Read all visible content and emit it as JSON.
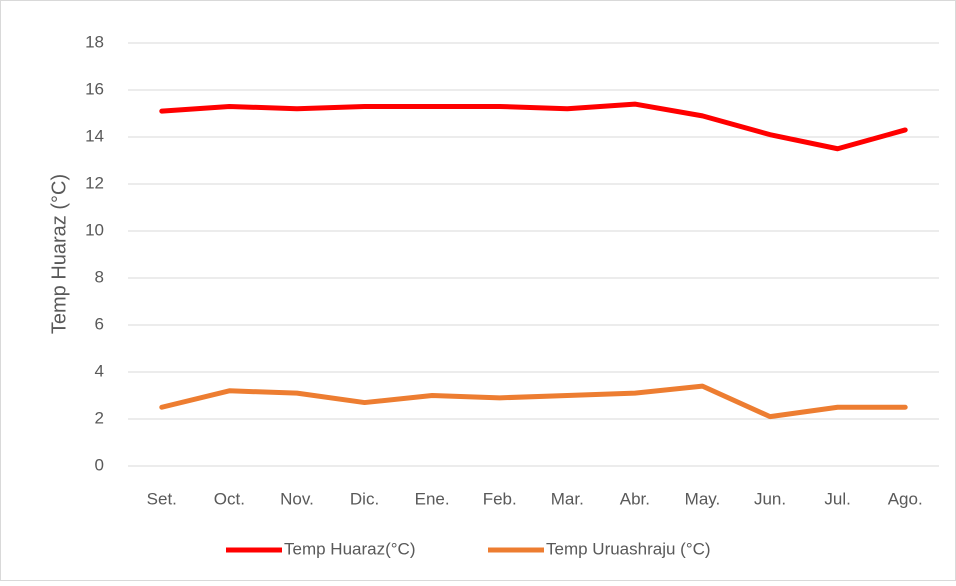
{
  "chart_data": {
    "type": "line",
    "y_label": "Temp Huaraz (°C)",
    "categories": [
      "Set.",
      "Oct.",
      "Nov.",
      "Dic.",
      "Ene.",
      "Feb.",
      "Mar.",
      "Abr.",
      "May.",
      "Jun.",
      "Jul.",
      "Ago."
    ],
    "series": [
      {
        "name": "Temp Huaraz(°C)",
        "color": "#ff0000",
        "values": [
          15.1,
          15.3,
          15.2,
          15.3,
          15.3,
          15.3,
          15.2,
          15.4,
          14.9,
          14.1,
          13.5,
          14.3
        ]
      },
      {
        "name": "Temp Uruashraju (°C)",
        "color": "#ed7d31",
        "values": [
          2.5,
          3.2,
          3.1,
          2.7,
          3.0,
          2.9,
          3.0,
          3.1,
          3.4,
          2.1,
          2.5,
          2.5
        ]
      }
    ],
    "ylim": [
      0,
      18
    ],
    "yticks": [
      0,
      2,
      4,
      6,
      8,
      10,
      12,
      14,
      16,
      18
    ],
    "grid": true,
    "legend": "bottom"
  }
}
